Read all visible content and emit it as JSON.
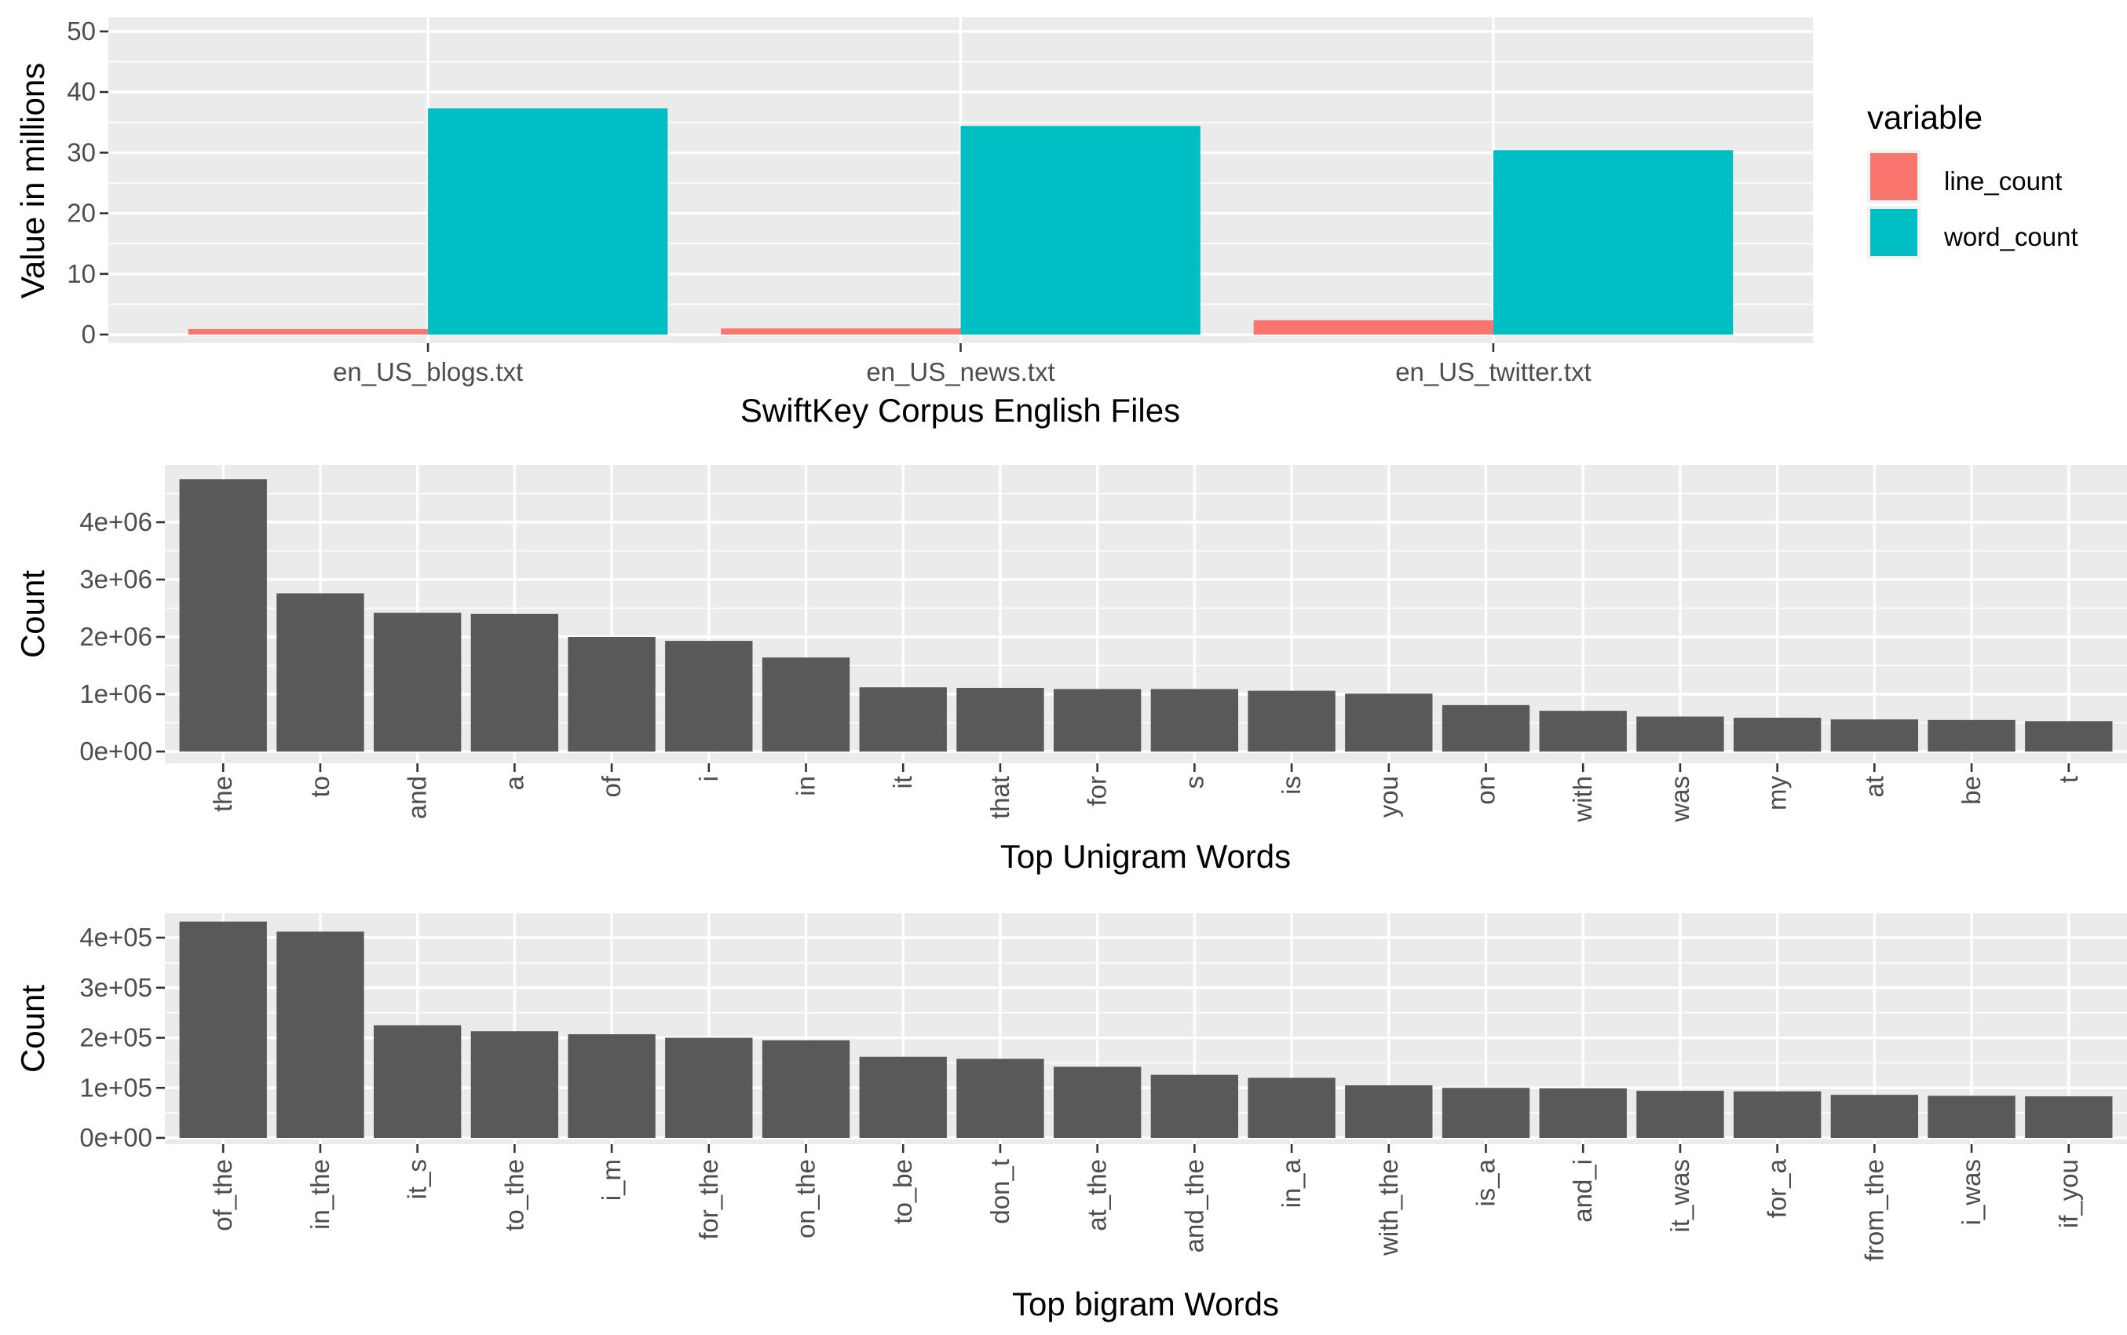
{
  "chart_data": [
    {
      "type": "bar",
      "categories": [
        "en_US_blogs.txt",
        "en_US_news.txt",
        "en_US_twitter.txt"
      ],
      "series": [
        {
          "name": "line_count",
          "values": [
            0.9,
            1.0,
            2.36
          ],
          "color": "#F8766D"
        },
        {
          "name": "word_count",
          "values": [
            37.3,
            34.4,
            30.4
          ],
          "color": "#00BFC4"
        }
      ],
      "xlabel": "SwiftKey Corpus English Files",
      "ylabel": "Value in millions",
      "ylim": [
        0,
        50
      ],
      "yticks": [
        0,
        10,
        20,
        30,
        40,
        50
      ],
      "ytick_labels": [
        "0",
        "10",
        "20",
        "30",
        "40",
        "50"
      ],
      "legend_title": "variable",
      "legend_position": "right",
      "grid": true
    },
    {
      "type": "bar",
      "categories": [
        "the",
        "to",
        "and",
        "a",
        "of",
        "i",
        "in",
        "it",
        "that",
        "for",
        "s",
        "is",
        "you",
        "on",
        "with",
        "was",
        "my",
        "at",
        "be",
        "t"
      ],
      "values": [
        4750000,
        2760000,
        2420000,
        2400000,
        2000000,
        1930000,
        1640000,
        1120000,
        1110000,
        1090000,
        1090000,
        1060000,
        1010000,
        810000,
        710000,
        610000,
        590000,
        560000,
        550000,
        530000
      ],
      "bar_color": "#595959",
      "xlabel": "Top Unigram Words",
      "ylabel": "Count",
      "ylim": [
        0,
        5000000
      ],
      "yticks": [
        0,
        1000000,
        2000000,
        3000000,
        4000000
      ],
      "ytick_labels": [
        "0e+00",
        "1e+06",
        "2e+06",
        "3e+06",
        "4e+06"
      ],
      "grid": true
    },
    {
      "type": "bar",
      "categories": [
        "of_the",
        "in_the",
        "it_s",
        "to_the",
        "i_m",
        "for_the",
        "on_the",
        "to_be",
        "don_t",
        "at_the",
        "and_the",
        "in_a",
        "with_the",
        "is_a",
        "and_i",
        "it_was",
        "for_a",
        "from_the",
        "i_was",
        "if_you"
      ],
      "values": [
        432000,
        412000,
        225000,
        213000,
        207000,
        200000,
        195000,
        162000,
        158000,
        142000,
        126000,
        120000,
        105000,
        100000,
        99000,
        94000,
        93000,
        86000,
        84000,
        83000
      ],
      "bar_color": "#595959",
      "xlabel": "Top bigram Words",
      "ylabel": "Count",
      "ylim": [
        0,
        450000
      ],
      "yticks": [
        0,
        100000,
        200000,
        300000,
        400000
      ],
      "ytick_labels": [
        "0e+00",
        "1e+05",
        "2e+05",
        "3e+05",
        "4e+05"
      ],
      "grid": true
    }
  ]
}
